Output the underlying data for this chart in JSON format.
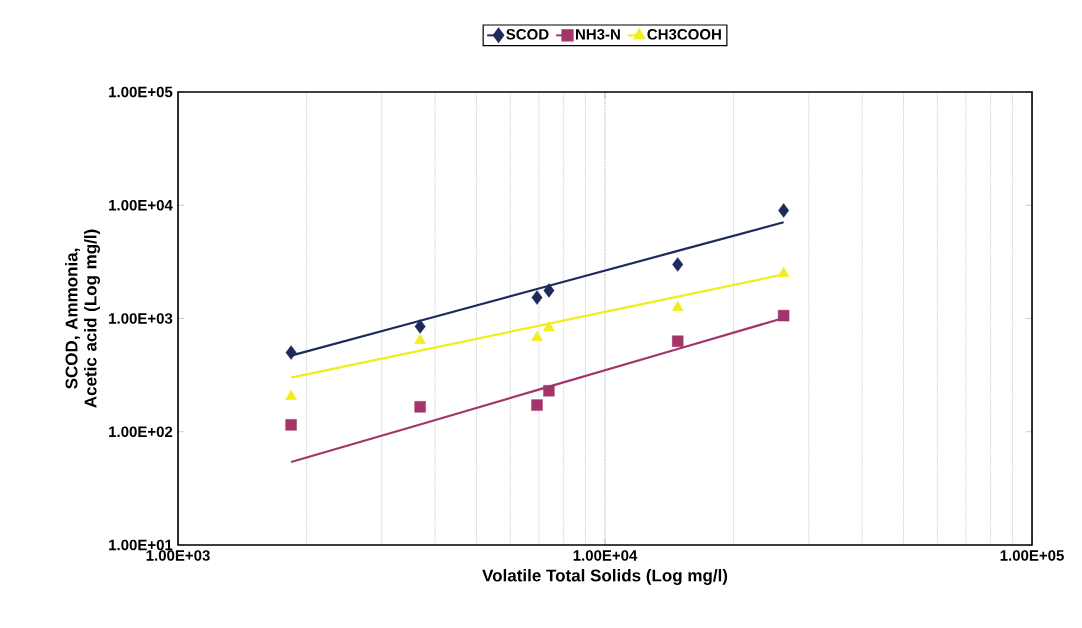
{
  "chart_data": {
    "type": "scatter",
    "xlabel": "Volatile Total Solids (Log mg/l)",
    "ylabel": "SCOD, Ammonia, Acetic acid (Log mg/l)",
    "log": "xy",
    "grid": "x",
    "legend": "top",
    "xlim": [
      1000,
      100000
    ],
    "ylim": [
      10,
      100000
    ],
    "xticks": [
      {
        "value": 1000,
        "label": "1.00E+03"
      },
      {
        "value": 10000,
        "label": "1.00E+04"
      },
      {
        "value": 100000,
        "label": "1.00E+05"
      }
    ],
    "yticks": [
      {
        "value": 10,
        "label": "1.00E+01"
      },
      {
        "value": 100,
        "label": "1.00E+02"
      },
      {
        "value": 1000,
        "label": "1.00E+03"
      },
      {
        "value": 10000,
        "label": "1.00E+04"
      },
      {
        "value": 100000,
        "label": "1.00E+05"
      }
    ],
    "x": [
      1840,
      3690,
      6930,
      7390,
      14800,
      26200
    ],
    "series": [
      {
        "name": "SCOD",
        "color": "#1f2a5c",
        "marker": "diamond",
        "values": [
          500,
          850,
          1530,
          1770,
          3000,
          9000
        ]
      },
      {
        "name": "NH3-N",
        "color": "#a3356b",
        "marker": "square",
        "values": [
          115,
          166,
          172,
          230,
          630,
          1060
        ]
      },
      {
        "name": "CH3COOH",
        "color": "#f2ee1e",
        "marker": "triangle",
        "values": [
          205,
          640,
          680,
          830,
          1250,
          2500
        ]
      },
      {
        "type": "line",
        "color": "#1f2a5c",
        "marker": "none",
        "values": [
          470,
          955,
          1820,
          1945,
          3950,
          7070
        ]
      },
      {
        "type": "line",
        "color": "#a3356b",
        "marker": "none",
        "values": [
          54,
          116,
          233,
          250,
          537,
          1010
        ]
      },
      {
        "type": "line",
        "color": "#f2ee1e",
        "marker": "none",
        "values": [
          300,
          520,
          857,
          902,
          1560,
          2450
        ]
      }
    ]
  }
}
